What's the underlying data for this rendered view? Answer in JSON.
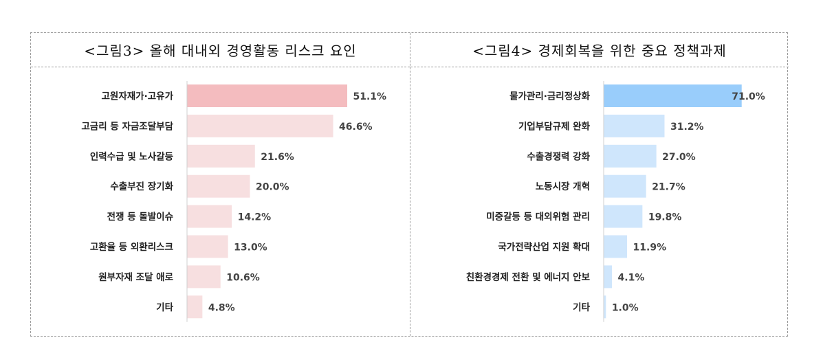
{
  "colors": {
    "left_highlight": "#f4bcbf",
    "left_bar": "#f7dfe0",
    "right_highlight": "#99cdfb",
    "right_bar": "#cfe6fc"
  },
  "chart_data": [
    {
      "type": "bar",
      "orientation": "horizontal",
      "title": "<그림3> 올해 대내외 경영활동 리스크 요인",
      "categories": [
        "고원자재가·고유가",
        "고금리 등 자금조달부담",
        "인력수급 및 노사갈등",
        "수출부진 장기화",
        "전쟁 등 돌발이슈",
        "고환율 등 외환리스크",
        "원부자재 조달 애로",
        "기타"
      ],
      "values": [
        51.1,
        46.6,
        21.6,
        20.0,
        14.2,
        13.0,
        10.6,
        4.8
      ],
      "labels": [
        "51.1%",
        "46.6%",
        "21.6%",
        "20.0%",
        "14.2%",
        "13.0%",
        "10.6%",
        "4.8%"
      ],
      "unit": "%"
    },
    {
      "type": "bar",
      "orientation": "horizontal",
      "title": "<그림4> 경제회복을 위한 중요 정책과제",
      "categories": [
        "물가관리·금리정상화",
        "기업부담규제 완화",
        "수출경쟁력 강화",
        "노동시장 개혁",
        "미중갈등 등 대외위험 관리",
        "국가전략산업 지원 확대",
        "친환경경제 전환 및 에너지 안보",
        "기타"
      ],
      "values": [
        71.0,
        31.2,
        27.0,
        21.7,
        19.8,
        11.9,
        4.1,
        1.0
      ],
      "labels": [
        "71.0%",
        "31.2%",
        "27.0%",
        "21.7%",
        "19.8%",
        "11.9%",
        "4.1%",
        "1.0%"
      ],
      "unit": "%"
    }
  ]
}
